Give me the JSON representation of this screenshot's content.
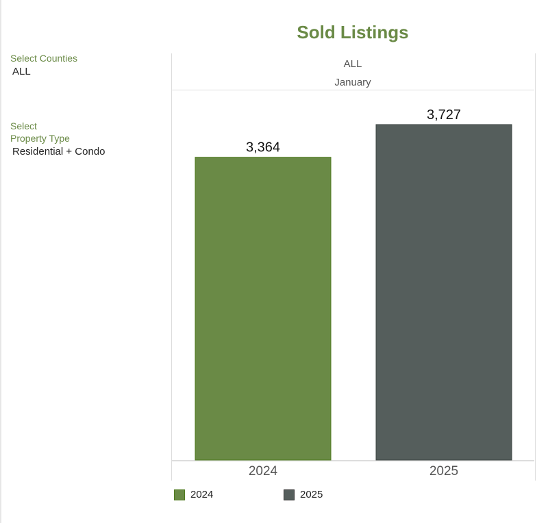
{
  "filters": {
    "counties": {
      "label": "Select Counties",
      "value": "ALL"
    },
    "property_type": {
      "label_line1": "Select",
      "label_line2": "Property Type",
      "value": "Residential + Condo"
    }
  },
  "chart_data": {
    "type": "bar",
    "title": "Sold Listings",
    "header_row1": "ALL",
    "header_row2": "January",
    "categories": [
      "2024",
      "2025"
    ],
    "values": [
      3364,
      3727
    ],
    "value_labels": [
      "3,364",
      "3,727"
    ],
    "colors": [
      "#6a8a46",
      "#555e5c"
    ],
    "legend": [
      "2024",
      "2025"
    ],
    "legend_position": "bottom-left",
    "xlabel": "",
    "ylabel": "",
    "ylim": [
      0,
      4107
    ],
    "grid": false
  }
}
